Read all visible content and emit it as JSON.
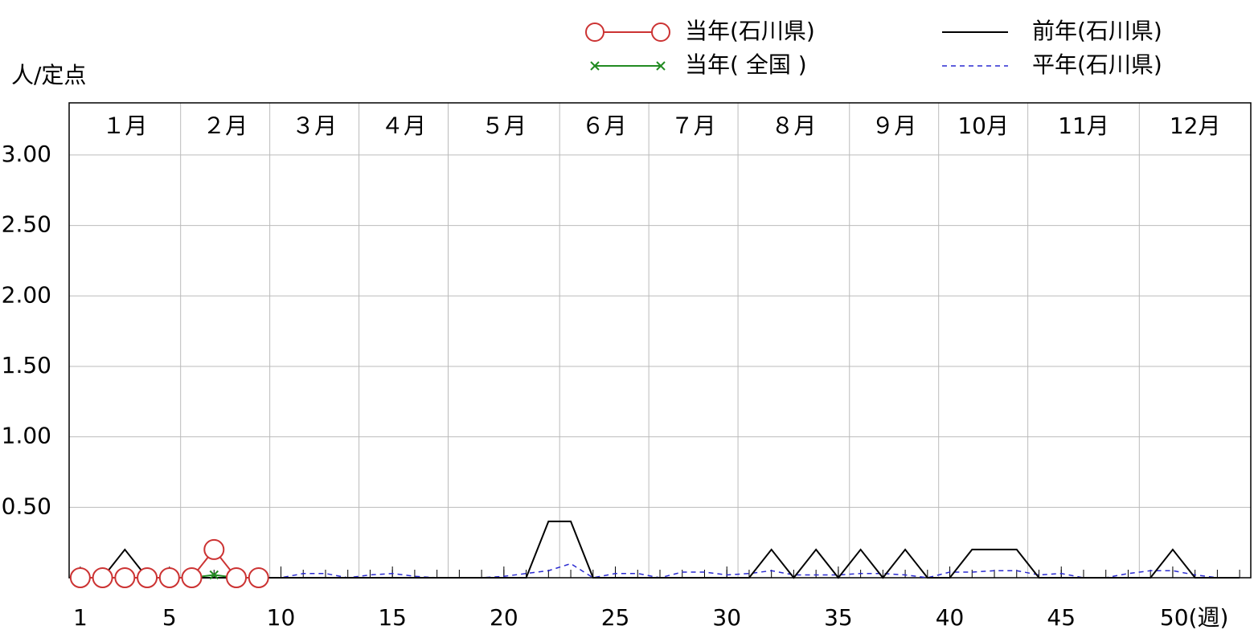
{
  "chart_data": {
    "type": "line",
    "y_axis_label": "人/定点",
    "x": [
      1,
      2,
      3,
      4,
      5,
      6,
      7,
      8,
      9,
      10,
      11,
      12,
      13,
      14,
      15,
      16,
      17,
      18,
      19,
      20,
      21,
      22,
      23,
      24,
      25,
      26,
      27,
      28,
      29,
      30,
      31,
      32,
      33,
      34,
      35,
      36,
      37,
      38,
      39,
      40,
      41,
      42,
      43,
      44,
      45,
      46,
      47,
      48,
      49,
      50,
      51,
      52,
      53
    ],
    "xlim": [
      0.5,
      53.5
    ],
    "xticks": [
      1,
      5,
      10,
      15,
      20,
      25,
      30,
      35,
      40,
      45,
      {
        "value": 50,
        "label": "50(週)"
      }
    ],
    "ylim": [
      0,
      3.37
    ],
    "yticks": [
      {
        "value": 0.5,
        "label": "0.50"
      },
      {
        "value": 1,
        "label": "1.00"
      },
      {
        "value": 1.5,
        "label": "1.50"
      },
      {
        "value": 2,
        "label": "2.00"
      },
      {
        "value": 2.5,
        "label": "2.50"
      },
      {
        "value": 3,
        "label": "3.00"
      }
    ],
    "grid": true,
    "months": [
      "１月",
      "２月",
      "３月",
      "４月",
      "５月",
      "６月",
      "７月",
      "８月",
      "９月",
      "10月",
      "11月",
      "12月"
    ],
    "month_boundaries": [
      0.5,
      5.5,
      9.5,
      13.5,
      17.5,
      22.5,
      26.5,
      30.5,
      35.5,
      39.5,
      43.5,
      48.5,
      53.5
    ],
    "series": [
      {
        "name": "当年(石川県)",
        "color": "#cc3333",
        "marker": "circle",
        "dash": false,
        "values": [
          0,
          0,
          0,
          0,
          0,
          0,
          0.2,
          0,
          0,
          null,
          null,
          null,
          null,
          null,
          null,
          null,
          null,
          null,
          null,
          null,
          null,
          null,
          null,
          null,
          null,
          null,
          null,
          null,
          null,
          null,
          null,
          null,
          null,
          null,
          null,
          null,
          null,
          null,
          null,
          null,
          null,
          null,
          null,
          null,
          null,
          null,
          null,
          null,
          null,
          null,
          null,
          null,
          null
        ]
      },
      {
        "name": "当年( 全国 )",
        "color": "#228b22",
        "marker": "x",
        "dash": false,
        "values": [
          0,
          0,
          0,
          0,
          0,
          0,
          0.02,
          0,
          0,
          null,
          null,
          null,
          null,
          null,
          null,
          null,
          null,
          null,
          null,
          null,
          null,
          null,
          null,
          null,
          null,
          null,
          null,
          null,
          null,
          null,
          null,
          null,
          null,
          null,
          null,
          null,
          null,
          null,
          null,
          null,
          null,
          null,
          null,
          null,
          null,
          null,
          null,
          null,
          null,
          null,
          null,
          null,
          null
        ]
      },
      {
        "name": "前年(石川県)",
        "color": "#000000",
        "marker": "none",
        "dash": false,
        "values": [
          0,
          0,
          0.2,
          0,
          0,
          0,
          0,
          0,
          0,
          0,
          0,
          0,
          0,
          0,
          0,
          0,
          0,
          0,
          0,
          0,
          0,
          0.4,
          0.4,
          0,
          0,
          0,
          0,
          0,
          0,
          0,
          0,
          0.2,
          0,
          0.2,
          0,
          0.2,
          0,
          0.2,
          0,
          0,
          0.2,
          0.2,
          0.2,
          0,
          0,
          0,
          0,
          0,
          0,
          0.2,
          0,
          0,
          0
        ]
      },
      {
        "name": "平年(石川県)",
        "color": "#2a2ad0",
        "marker": "none",
        "dash": true,
        "values": [
          0,
          0,
          0,
          0,
          0,
          0,
          0,
          0,
          0,
          0,
          0.03,
          0.03,
          0,
          0.02,
          0.03,
          0.01,
          0,
          0,
          0,
          0.01,
          0.03,
          0.05,
          0.1,
          0,
          0.03,
          0.03,
          0,
          0.04,
          0.04,
          0.02,
          0.03,
          0.05,
          0.02,
          0.02,
          0.02,
          0.03,
          0.03,
          0.02,
          0,
          0.04,
          0.04,
          0.05,
          0.05,
          0.02,
          0.03,
          0,
          0,
          0.03,
          0.05,
          0.05,
          0.02,
          0,
          0
        ]
      }
    ]
  }
}
